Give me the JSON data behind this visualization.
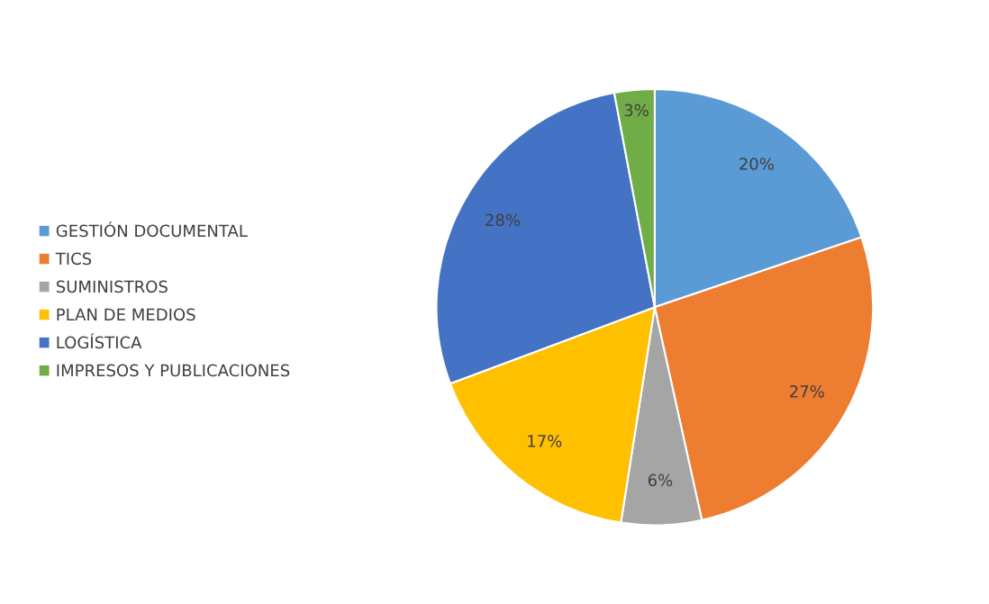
{
  "chart_data": {
    "type": "pie",
    "categories": [
      "GESTIÓN DOCUMENTAL",
      "TICS",
      "SUMINISTROS",
      "PLAN DE MEDIOS",
      "LOGÍSTICA",
      "IMPRESOS Y PUBLICACIONES"
    ],
    "values": [
      20,
      27,
      6,
      17,
      28,
      3
    ],
    "colors": [
      "#5b9bd5",
      "#ed7d31",
      "#a5a5a5",
      "#ffc000",
      "#4472c4",
      "#70ad47"
    ],
    "value_labels": [
      "20%",
      "27%",
      "6%",
      "17%",
      "28%",
      "3%"
    ],
    "legend": "left"
  }
}
